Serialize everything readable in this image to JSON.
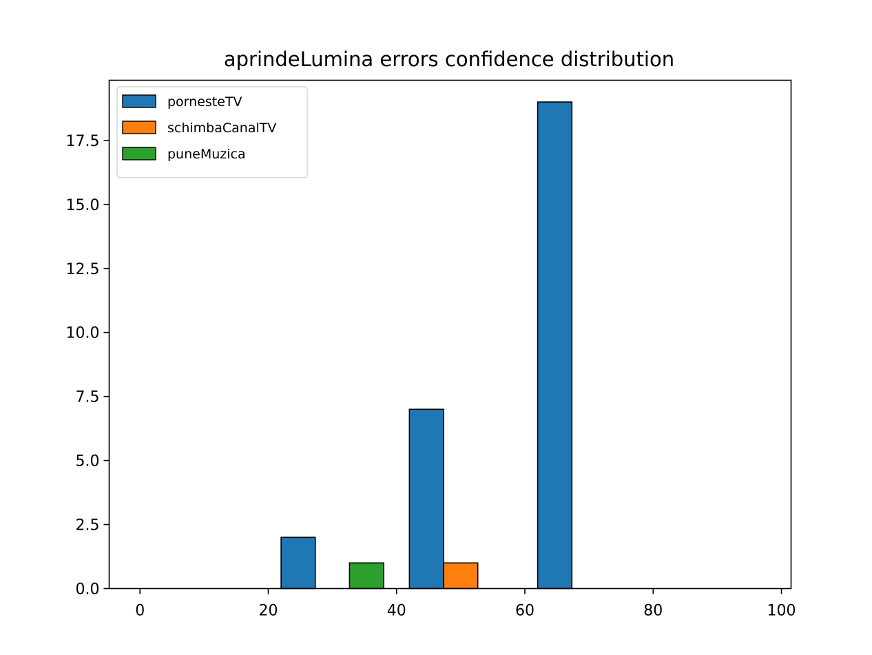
{
  "chart_data": {
    "type": "bar",
    "title": "aprindeLumina errors confidence distribution",
    "xlabel": "",
    "ylabel": "",
    "xlim": [
      -4.8,
      101.5
    ],
    "ylim": [
      0,
      19.85
    ],
    "x_ticks": [
      0,
      20,
      40,
      60,
      80,
      100
    ],
    "x_tick_labels": [
      "0",
      "20",
      "40",
      "60",
      "80",
      "100"
    ],
    "y_ticks": [
      0,
      2.5,
      5,
      7.5,
      10,
      12.5,
      15,
      17.5
    ],
    "y_tick_labels": [
      "0.0",
      "2.5",
      "5.0",
      "7.5",
      "10.0",
      "12.5",
      "15.0",
      "17.5"
    ],
    "bin_edges": [
      0,
      20,
      40,
      60,
      80,
      100
    ],
    "grid": false,
    "legend_position": "upper-left",
    "series": [
      {
        "name": "pornesteTV",
        "color": "#1f77b4",
        "values": [
          0,
          2,
          7,
          19,
          0
        ]
      },
      {
        "name": "schimbaCanalTV",
        "color": "#ff7f0e",
        "values": [
          0,
          0,
          1,
          0,
          0
        ]
      },
      {
        "name": "puneMuzica",
        "color": "#2ca02c",
        "values": [
          0,
          1,
          0,
          0,
          0
        ]
      }
    ]
  }
}
